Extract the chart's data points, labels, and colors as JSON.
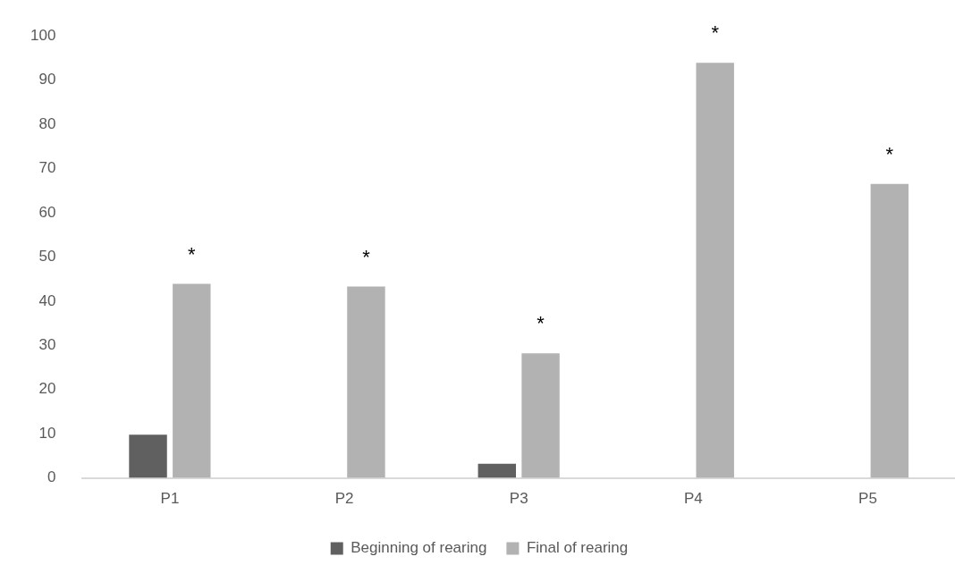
{
  "chart_data": {
    "type": "bar",
    "categories": [
      "P1",
      "P2",
      "P3",
      "P4",
      "P5"
    ],
    "series": [
      {
        "name": "Beginning of rearing",
        "color": "#606060",
        "values": [
          9.8,
          0,
          3.2,
          0,
          0
        ]
      },
      {
        "name": "Final of rearing",
        "color": "#b2b2b2",
        "values": [
          43.9,
          43.3,
          28.2,
          93.9,
          66.5
        ]
      }
    ],
    "ylim": [
      0,
      100
    ],
    "yticks": [
      0,
      10,
      20,
      30,
      40,
      50,
      60,
      70,
      80,
      90,
      100
    ],
    "grid": false,
    "legend": "bottom",
    "annotations": [
      {
        "text": "*",
        "x": "P1",
        "y": 43.9
      },
      {
        "text": "*",
        "x": "P2",
        "y": 43.3
      },
      {
        "text": "*",
        "x": "P3",
        "y": 28.2
      },
      {
        "text": "*",
        "x": "P4",
        "y": 93.9
      },
      {
        "text": "*",
        "x": "P5",
        "y": 66.5
      }
    ]
  }
}
